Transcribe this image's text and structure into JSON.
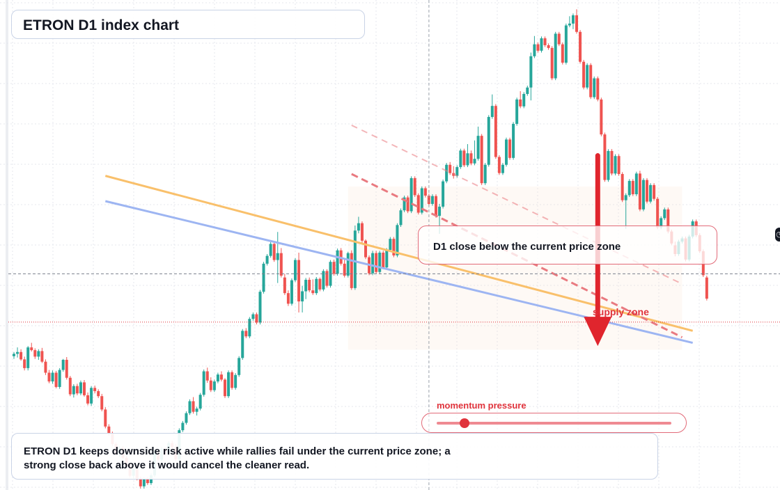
{
  "header": {
    "title": "ETRON D1 index chart"
  },
  "callout": {
    "text": "D1 close below the current price zone"
  },
  "zone_label": "supply zone",
  "momentum": {
    "label": "momentum pressure",
    "level": 0.12
  },
  "summary": {
    "text": "ETRON D1 keeps downside risk active while rallies fail under the current price zone; a strong close back above it would cancel the cleaner read."
  },
  "colors": {
    "up": "#26a69a",
    "down": "#ef5350",
    "accent": "#e0333c",
    "orange_line": "#f9c06b",
    "blue_line": "#9db5f2"
  },
  "icons": {
    "edge": "clock-icon"
  },
  "chart_data": {
    "type": "candlestick",
    "title": "ETRON D1 index chart",
    "xlabel": "",
    "ylabel": "",
    "ylim": [
      0,
      100
    ],
    "grid": true,
    "current_price": 36.5,
    "crosshair": {
      "bar": 118,
      "price": 47.0
    },
    "supply_zone": {
      "from_bar": 95,
      "to_bar": 190,
      "low": 30.5,
      "high": 66.0
    },
    "trendlines": [
      {
        "name": "",
        "color": "orange",
        "style": "solid",
        "from": [
          26,
          68.3
        ],
        "to": [
          193,
          34.6
        ]
      },
      {
        "name": "",
        "color": "blue",
        "style": "solid",
        "from": [
          26,
          62.8
        ],
        "to": [
          193,
          32.0
        ]
      },
      {
        "name": "",
        "color": "red",
        "style": "dashed",
        "from": [
          96,
          68.7
        ],
        "to": [
          190,
          33.2
        ]
      },
      {
        "name": "",
        "color": "red",
        "style": "dashed-faint",
        "from": [
          96,
          79.3
        ],
        "to": [
          190,
          44.8
        ]
      }
    ],
    "arrow": {
      "bar": 166,
      "from": 72.7,
      "to": 31.3
    },
    "candles": [
      [
        29.1,
        30.0,
        28.5,
        29.6
      ],
      [
        29.6,
        31.0,
        28.8,
        30.0
      ],
      [
        30.0,
        30.6,
        28.1,
        28.4
      ],
      [
        28.4,
        29.0,
        26.0,
        26.5
      ],
      [
        26.5,
        31.3,
        26.0,
        31.0
      ],
      [
        31.0,
        32.0,
        30.1,
        30.4
      ],
      [
        30.4,
        30.8,
        28.5,
        29.0
      ],
      [
        29.0,
        30.6,
        28.3,
        30.2
      ],
      [
        30.2,
        30.9,
        27.6,
        27.9
      ],
      [
        27.9,
        28.4,
        25.0,
        25.5
      ],
      [
        25.5,
        26.1,
        23.2,
        23.6
      ],
      [
        23.6,
        26.0,
        23.1,
        25.5
      ],
      [
        25.5,
        25.9,
        22.1,
        22.4
      ],
      [
        22.4,
        26.5,
        22.0,
        26.1
      ],
      [
        26.1,
        28.5,
        25.7,
        28.3
      ],
      [
        28.3,
        28.9,
        24.0,
        24.4
      ],
      [
        24.4,
        24.8,
        20.4,
        20.8
      ],
      [
        20.8,
        23.0,
        20.1,
        22.6
      ],
      [
        22.6,
        23.1,
        20.6,
        21.0
      ],
      [
        21.0,
        23.8,
        20.6,
        23.4
      ],
      [
        23.4,
        23.9,
        20.3,
        20.6
      ],
      [
        20.6,
        21.2,
        18.4,
        18.8
      ],
      [
        18.8,
        22.6,
        18.3,
        22.2
      ],
      [
        22.2,
        22.7,
        21.0,
        21.5
      ],
      [
        21.5,
        21.9,
        20.0,
        20.4
      ],
      [
        20.4,
        20.9,
        17.1,
        17.5
      ],
      [
        17.5,
        18.0,
        13.4,
        13.8
      ],
      [
        13.8,
        14.3,
        11.8,
        12.2
      ],
      [
        12.2,
        12.7,
        9.6,
        10.0
      ],
      [
        10.0,
        10.4,
        7.6,
        8.0
      ],
      [
        8.0,
        9.5,
        7.2,
        9.1
      ],
      [
        9.1,
        9.5,
        6.6,
        7.0
      ],
      [
        7.0,
        7.4,
        4.8,
        5.2
      ],
      [
        5.2,
        5.6,
        2.7,
        3.1
      ],
      [
        3.1,
        5.0,
        2.5,
        4.6
      ],
      [
        4.6,
        5.0,
        2.1,
        2.5
      ],
      [
        2.5,
        2.9,
        0.3,
        0.8
      ],
      [
        0.8,
        2.8,
        0.3,
        2.4
      ],
      [
        2.4,
        2.8,
        1.1,
        1.5
      ],
      [
        1.5,
        3.6,
        1.1,
        3.2
      ],
      [
        3.2,
        8.5,
        2.8,
        8.0
      ],
      [
        8.0,
        8.6,
        6.2,
        6.6
      ],
      [
        6.6,
        9.3,
        6.2,
        8.9
      ],
      [
        8.9,
        9.3,
        7.5,
        7.9
      ],
      [
        7.9,
        10.6,
        7.5,
        10.2
      ],
      [
        10.2,
        10.7,
        8.9,
        9.3
      ],
      [
        9.3,
        10.0,
        6.3,
        6.7
      ],
      [
        6.7,
        13.4,
        6.3,
        13.0
      ],
      [
        13.0,
        15.0,
        12.6,
        14.6
      ],
      [
        14.6,
        17.1,
        14.2,
        16.7
      ],
      [
        16.7,
        19.7,
        16.3,
        19.3
      ],
      [
        19.3,
        20.2,
        16.6,
        17.0
      ],
      [
        17.0,
        18.1,
        16.2,
        17.7
      ],
      [
        17.7,
        21.1,
        17.3,
        20.7
      ],
      [
        20.7,
        26.2,
        20.3,
        25.8
      ],
      [
        25.8,
        26.6,
        23.3,
        23.8
      ],
      [
        23.8,
        24.5,
        21.3,
        21.7
      ],
      [
        21.7,
        24.0,
        21.3,
        23.6
      ],
      [
        23.6,
        25.5,
        23.2,
        25.1
      ],
      [
        25.1,
        25.8,
        23.6,
        24.0
      ],
      [
        24.0,
        24.3,
        20.0,
        20.4
      ],
      [
        20.4,
        26.0,
        20.0,
        25.6
      ],
      [
        25.6,
        26.0,
        21.8,
        22.2
      ],
      [
        22.2,
        25.4,
        21.8,
        25.0
      ],
      [
        25.0,
        29.1,
        24.6,
        28.7
      ],
      [
        28.7,
        35.0,
        28.3,
        34.6
      ],
      [
        34.6,
        35.2,
        33.0,
        33.4
      ],
      [
        33.4,
        37.6,
        33.0,
        37.2
      ],
      [
        37.2,
        38.6,
        36.8,
        38.2
      ],
      [
        38.2,
        38.6,
        36.0,
        36.4
      ],
      [
        36.4,
        43.5,
        36.0,
        43.1
      ],
      [
        43.1,
        49.6,
        42.7,
        49.2
      ],
      [
        49.2,
        51.3,
        48.8,
        50.9
      ],
      [
        50.9,
        53.9,
        50.5,
        53.5
      ],
      [
        53.5,
        53.8,
        49.6,
        50.0
      ],
      [
        50.0,
        56.1,
        45.0,
        51.5
      ],
      [
        51.5,
        52.6,
        46.2,
        46.6
      ],
      [
        46.2,
        47.0,
        42.4,
        42.8
      ],
      [
        42.8,
        43.4,
        40.0,
        40.5
      ],
      [
        40.5,
        46.0,
        40.1,
        45.6
      ],
      [
        45.6,
        50.4,
        45.2,
        50.0
      ],
      [
        50.0,
        51.6,
        38.6,
        41.0
      ],
      [
        41.0,
        44.4,
        38.6,
        43.2
      ],
      [
        43.2,
        46.1,
        41.5,
        45.7
      ],
      [
        45.7,
        46.2,
        43.0,
        43.4
      ],
      [
        43.4,
        45.8,
        42.4,
        42.8
      ],
      [
        42.8,
        46.3,
        42.4,
        45.9
      ],
      [
        45.9,
        46.2,
        43.2,
        43.6
      ],
      [
        43.6,
        48.0,
        43.2,
        47.6
      ],
      [
        47.6,
        48.0,
        44.0,
        44.4
      ],
      [
        44.4,
        50.0,
        44.0,
        49.6
      ],
      [
        49.6,
        50.1,
        46.6,
        47.0
      ],
      [
        47.0,
        52.5,
        46.6,
        52.1
      ],
      [
        52.1,
        52.6,
        48.8,
        49.2
      ],
      [
        49.2,
        50.2,
        46.2,
        46.6
      ],
      [
        46.6,
        51.8,
        46.2,
        51.5
      ],
      [
        51.5,
        52.1,
        43.5,
        43.9
      ],
      [
        43.9,
        57.5,
        43.5,
        56.4
      ],
      [
        56.4,
        59.4,
        55.8,
        58.0
      ],
      [
        58.0,
        58.4,
        53.8,
        54.2
      ],
      [
        54.2,
        54.5,
        50.2,
        50.6
      ],
      [
        50.6,
        51.0,
        46.7,
        47.1
      ],
      [
        47.1,
        52.0,
        46.7,
        51.5
      ],
      [
        51.5,
        52.0,
        47.0,
        47.4
      ],
      [
        47.4,
        52.0,
        47.0,
        51.6
      ],
      [
        51.6,
        52.0,
        48.0,
        48.4
      ],
      [
        48.4,
        52.6,
        48.0,
        52.2
      ],
      [
        52.2,
        55.0,
        51.8,
        54.6
      ],
      [
        54.6,
        55.0,
        50.6,
        51.0
      ],
      [
        51.0,
        58.0,
        50.6,
        57.6
      ],
      [
        57.6,
        61.2,
        57.2,
        60.8
      ],
      [
        60.8,
        64.0,
        60.4,
        63.6
      ],
      [
        63.6,
        64.0,
        60.2,
        60.6
      ],
      [
        60.6,
        68.2,
        60.2,
        67.8
      ],
      [
        67.8,
        68.2,
        63.7,
        64.1
      ],
      [
        64.1,
        64.5,
        59.9,
        60.3
      ],
      [
        60.3,
        66.0,
        59.9,
        65.6
      ],
      [
        65.6,
        66.0,
        63.6,
        64.0
      ],
      [
        64.0,
        64.4,
        61.8,
        62.2
      ],
      [
        62.2,
        64.3,
        61.8,
        63.9
      ],
      [
        63.9,
        64.3,
        59.2,
        59.6
      ],
      [
        59.6,
        62.2,
        55.7,
        61.6
      ],
      [
        61.6,
        67.5,
        61.2,
        67.1
      ],
      [
        67.1,
        71.1,
        66.7,
        70.7
      ],
      [
        70.7,
        71.3,
        68.5,
        68.9
      ],
      [
        68.9,
        70.4,
        67.7,
        68.3
      ],
      [
        68.3,
        70.6,
        67.9,
        70.2
      ],
      [
        70.2,
        74.2,
        69.8,
        73.8
      ],
      [
        73.8,
        74.2,
        70.2,
        70.6
      ],
      [
        70.6,
        75.2,
        70.2,
        73.2
      ],
      [
        73.2,
        73.8,
        70.6,
        71.0
      ],
      [
        71.0,
        76.0,
        70.6,
        72.0
      ],
      [
        72.0,
        79.0,
        71.6,
        77.0
      ],
      [
        77.0,
        77.4,
        66.3,
        66.7
      ],
      [
        66.7,
        71.1,
        66.3,
        70.7
      ],
      [
        70.7,
        81.5,
        70.3,
        81.1
      ],
      [
        81.1,
        86.0,
        80.7,
        83.5
      ],
      [
        83.5,
        83.9,
        72.0,
        72.4
      ],
      [
        72.4,
        72.8,
        68.5,
        68.9
      ],
      [
        68.9,
        71.1,
        68.5,
        70.7
      ],
      [
        70.7,
        76.6,
        70.3,
        76.2
      ],
      [
        76.2,
        76.6,
        71.8,
        72.2
      ],
      [
        72.2,
        80.0,
        71.8,
        79.6
      ],
      [
        79.6,
        85.3,
        79.2,
        84.9
      ],
      [
        84.9,
        86.7,
        83.0,
        83.4
      ],
      [
        83.4,
        86.5,
        83.0,
        86.1
      ],
      [
        86.1,
        87.9,
        85.7,
        87.5
      ],
      [
        87.5,
        95.1,
        84.7,
        94.3
      ],
      [
        94.3,
        98.7,
        93.9,
        96.9
      ],
      [
        96.9,
        97.3,
        95.1,
        95.5
      ],
      [
        95.5,
        98.6,
        95.1,
        98.2
      ],
      [
        98.2,
        98.6,
        96.3,
        96.7
      ],
      [
        96.7,
        97.1,
        95.7,
        96.1
      ],
      [
        96.1,
        96.5,
        89.1,
        89.5
      ],
      [
        89.5,
        99.6,
        89.1,
        99.2
      ],
      [
        99.2,
        99.6,
        96.5,
        96.9
      ],
      [
        96.9,
        97.3,
        92.5,
        92.9
      ],
      [
        92.9,
        101.4,
        92.5,
        101.0
      ],
      [
        101.0,
        103.0,
        100.6,
        101.4
      ],
      [
        101.4,
        103.6,
        100.2,
        103.2
      ],
      [
        103.2,
        104.5,
        99.2,
        99.6
      ],
      [
        99.6,
        100.0,
        92.7,
        93.1
      ],
      [
        93.1,
        93.5,
        87.1,
        87.5
      ],
      [
        87.5,
        92.8,
        87.1,
        92.4
      ],
      [
        92.4,
        92.8,
        85.0,
        85.4
      ],
      [
        85.4,
        89.9,
        85.0,
        89.5
      ],
      [
        89.5,
        89.9,
        84.5,
        84.9
      ],
      [
        84.9,
        85.3,
        76.9,
        77.3
      ],
      [
        77.3,
        77.7,
        67.0,
        67.4
      ],
      [
        67.4,
        74.1,
        67.0,
        73.7
      ],
      [
        73.7,
        74.1,
        68.4,
        68.8
      ],
      [
        68.8,
        73.0,
        68.4,
        72.6
      ],
      [
        72.6,
        73.0,
        68.3,
        68.7
      ],
      [
        68.7,
        69.1,
        62.6,
        63.0
      ],
      [
        63.0,
        64.5,
        56.8,
        64.1
      ],
      [
        64.1,
        67.6,
        63.7,
        67.2
      ],
      [
        67.2,
        67.6,
        63.9,
        64.3
      ],
      [
        64.3,
        69.2,
        63.9,
        68.8
      ],
      [
        68.8,
        69.4,
        60.6,
        61.0
      ],
      [
        61.0,
        67.8,
        60.6,
        67.4
      ],
      [
        67.4,
        67.8,
        62.3,
        62.7
      ],
      [
        62.7,
        66.7,
        62.3,
        66.3
      ],
      [
        66.3,
        66.7,
        62.9,
        63.3
      ],
      [
        63.3,
        63.7,
        56.7,
        57.1
      ],
      [
        57.1,
        59.5,
        56.7,
        59.1
      ],
      [
        59.1,
        61.4,
        58.7,
        61.0
      ],
      [
        61.0,
        61.4,
        55.8,
        56.2
      ],
      [
        56.2,
        56.6,
        53.2,
        53.6
      ],
      [
        53.2,
        54.0,
        50.8,
        51.3
      ],
      [
        51.3,
        54.4,
        50.9,
        54.0
      ],
      [
        54.0,
        55.1,
        53.6,
        54.7
      ],
      [
        54.7,
        55.1,
        49.7,
        50.1
      ],
      [
        50.1,
        55.5,
        49.7,
        55.1
      ],
      [
        55.1,
        58.8,
        54.7,
        58.4
      ],
      [
        58.4,
        58.8,
        55.0,
        55.4
      ],
      [
        55.4,
        55.8,
        51.5,
        51.9
      ],
      [
        51.9,
        52.3,
        46.3,
        46.7
      ],
      [
        46.2,
        46.6,
        41.2,
        41.6
      ]
    ]
  }
}
